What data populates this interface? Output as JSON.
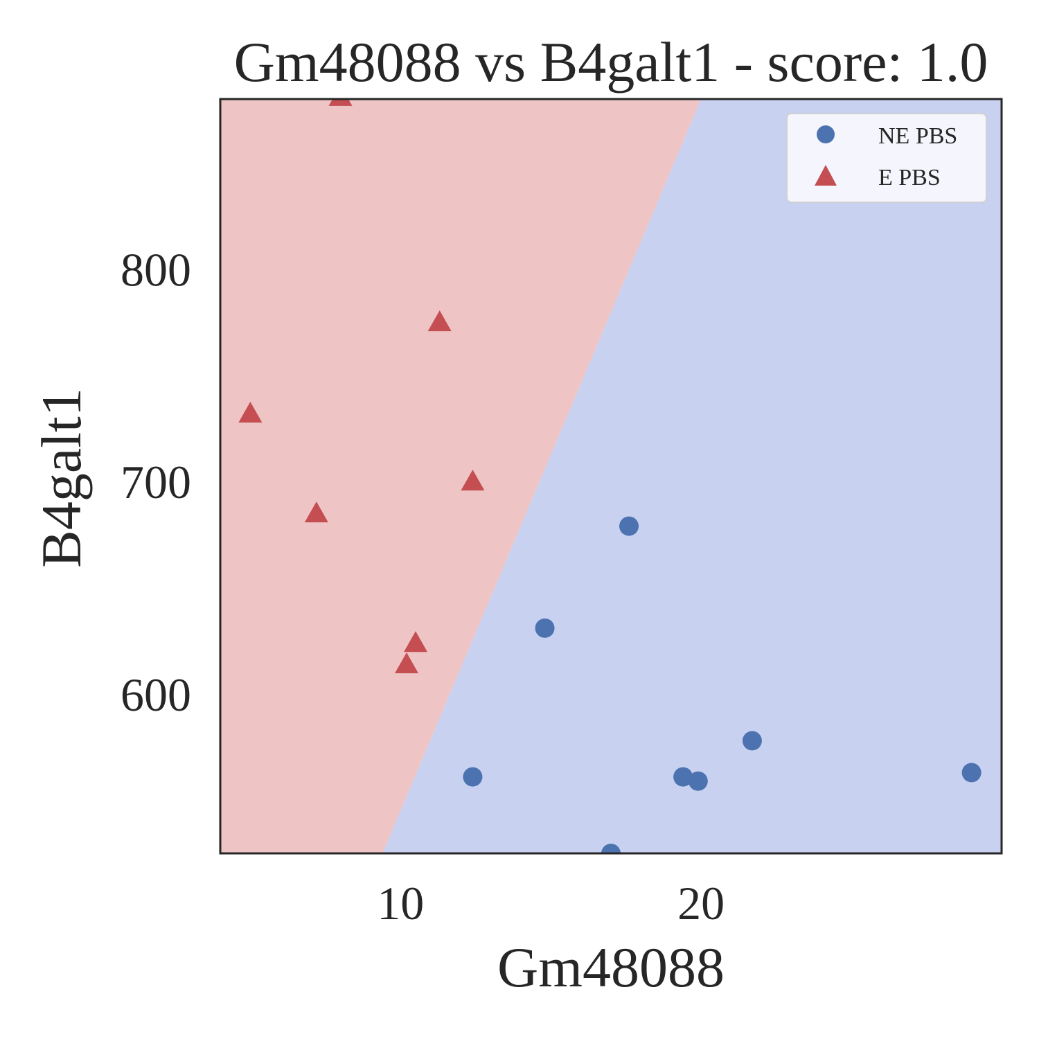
{
  "chart_data": {
    "type": "scatter",
    "title": "Gm48088 vs B4galt1 - score: 1.0",
    "xlabel": "Gm48088",
    "ylabel": "B4galt1",
    "xlim": [
      4,
      30
    ],
    "ylim": [
      525,
      880
    ],
    "xticks": [
      10,
      20
    ],
    "yticks": [
      600,
      700,
      800
    ],
    "grid": false,
    "legend_position": "top-right",
    "background": "decision regions split by a line through (9.4, 525) and (20.0, 880)",
    "region_colors": {
      "E PBS": "#eec4c4",
      "NE PBS": "#c9d1f1"
    },
    "series": [
      {
        "name": "NE PBS",
        "marker": "circle",
        "color": "#4c72b0",
        "points": [
          [
            17.6,
            679
          ],
          [
            14.8,
            631
          ],
          [
            12.4,
            561
          ],
          [
            19.4,
            561
          ],
          [
            19.9,
            559
          ],
          [
            21.7,
            578
          ],
          [
            29.0,
            563
          ],
          [
            17.0,
            525
          ]
        ]
      },
      {
        "name": "E PBS",
        "marker": "triangle",
        "color": "#c44e52",
        "points": [
          [
            8.0,
            881
          ],
          [
            11.3,
            775
          ],
          [
            5.0,
            732
          ],
          [
            12.4,
            700
          ],
          [
            7.2,
            685
          ],
          [
            10.5,
            624
          ],
          [
            10.2,
            614
          ]
        ]
      }
    ]
  }
}
